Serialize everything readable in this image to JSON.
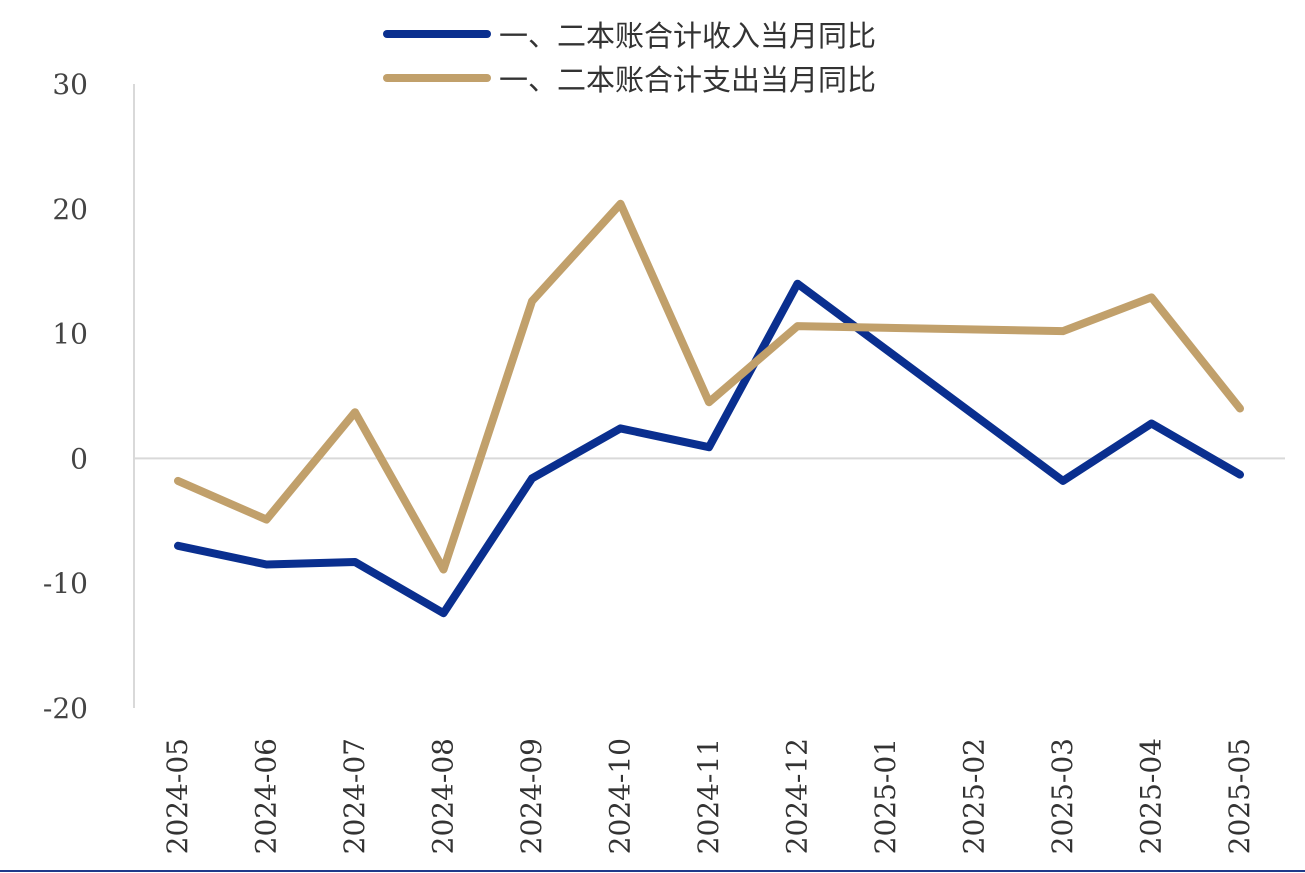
{
  "colors": {
    "income": "#0a2f8f",
    "expenditure": "#c1a06b",
    "axis": "#d9d9d9",
    "bottom_rule": "#1f3a8a"
  },
  "chart_data": {
    "type": "line",
    "title": "",
    "xlabel": "",
    "ylabel": "",
    "ylim": [
      -20,
      30
    ],
    "yticks": [
      30,
      20,
      10,
      0,
      -10,
      -20
    ],
    "grid": false,
    "legend_position": "top-center",
    "categories": [
      "2024-05",
      "2024-06",
      "2024-07",
      "2024-08",
      "2024-09",
      "2024-10",
      "2024-11",
      "2024-12",
      "2025-01",
      "2025-02",
      "2025-03",
      "2025-04",
      "2025-05"
    ],
    "series": [
      {
        "name": "一、二本账合计收入当月同比",
        "color": "#0a2f8f",
        "values": [
          -7.0,
          -8.5,
          -8.3,
          -12.4,
          -1.6,
          2.4,
          0.9,
          14.0,
          null,
          null,
          -1.8,
          2.8,
          -1.3
        ]
      },
      {
        "name": "一、二本账合计支出当月同比",
        "color": "#c1a06b",
        "values": [
          -1.8,
          -4.9,
          3.7,
          -8.9,
          12.6,
          20.4,
          4.5,
          10.6,
          null,
          null,
          10.2,
          12.9,
          4.0
        ]
      }
    ]
  }
}
